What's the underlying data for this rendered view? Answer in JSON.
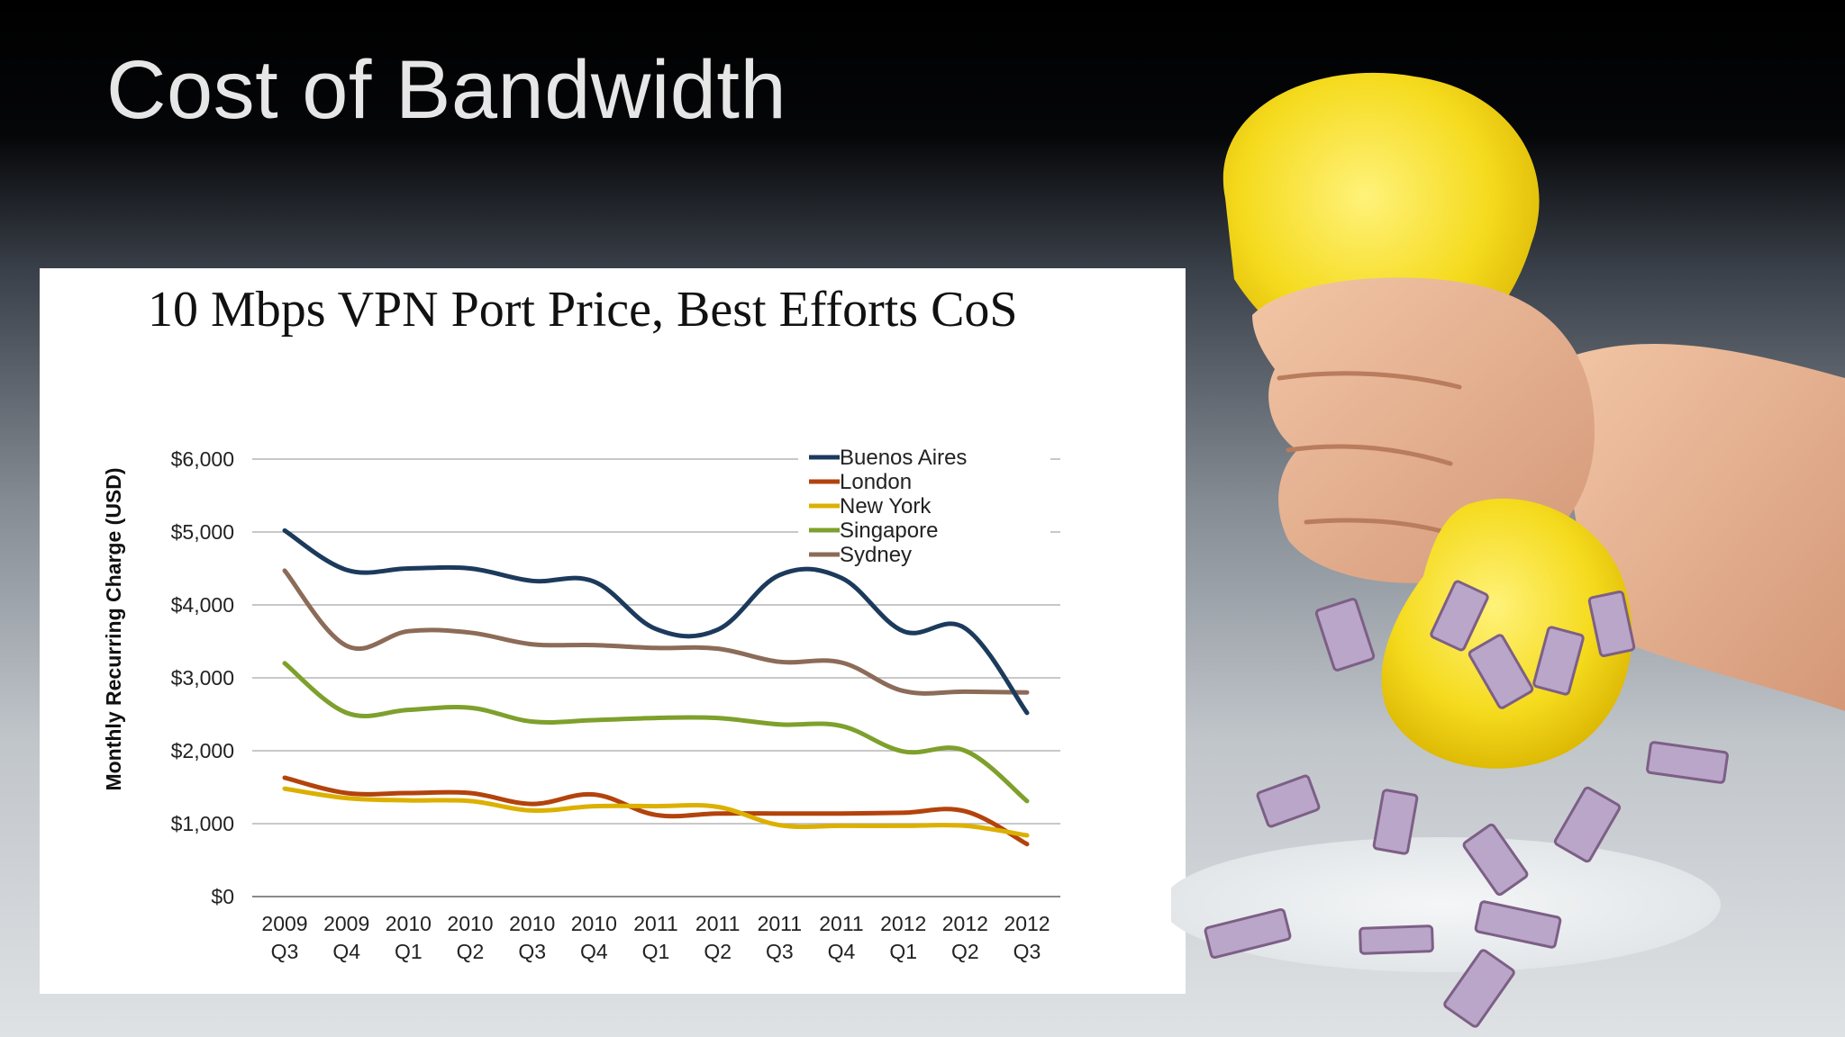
{
  "slide": {
    "title": "Cost of Bandwidth"
  },
  "colors": {
    "buenos_aires": "#1c3a5c",
    "london": "#b3430c",
    "new_york": "#dcb000",
    "singapore": "#7ea02c",
    "sydney": "#8c6b59"
  },
  "illustration": {
    "subject": "hand squeezing yellow sponge with banknotes falling",
    "icon": "hand-sponge-money-icon"
  },
  "chart_data": {
    "type": "line",
    "title": "10 Mbps VPN Port Price, Best Efforts CoS",
    "xlabel": "",
    "ylabel": "Monthly Recurring Charge (USD)",
    "ylim": [
      0,
      6000
    ],
    "yticks": [
      {
        "value": 0,
        "label": "$0"
      },
      {
        "value": 1000,
        "label": "$1,000"
      },
      {
        "value": 2000,
        "label": "$2,000"
      },
      {
        "value": 3000,
        "label": "$3,000"
      },
      {
        "value": 4000,
        "label": "$4,000"
      },
      {
        "value": 5000,
        "label": "$5,000"
      },
      {
        "value": 6000,
        "label": "$6,000"
      }
    ],
    "grid": true,
    "legend": "top-right",
    "categories": [
      {
        "year": "2009",
        "quarter": "Q3"
      },
      {
        "year": "2009",
        "quarter": "Q4"
      },
      {
        "year": "2010",
        "quarter": "Q1"
      },
      {
        "year": "2010",
        "quarter": "Q2"
      },
      {
        "year": "2010",
        "quarter": "Q3"
      },
      {
        "year": "2010",
        "quarter": "Q4"
      },
      {
        "year": "2011",
        "quarter": "Q1"
      },
      {
        "year": "2011",
        "quarter": "Q2"
      },
      {
        "year": "2011",
        "quarter": "Q3"
      },
      {
        "year": "2011",
        "quarter": "Q4"
      },
      {
        "year": "2012",
        "quarter": "Q1"
      },
      {
        "year": "2012",
        "quarter": "Q2"
      },
      {
        "year": "2012",
        "quarter": "Q3"
      }
    ],
    "series": [
      {
        "name": "Buenos Aires",
        "color": "#1c3a5c",
        "values": [
          5020,
          4480,
          4500,
          4500,
          4330,
          4320,
          3670,
          3660,
          4410,
          4370,
          3640,
          3680,
          2520
        ]
      },
      {
        "name": "London",
        "color": "#b3430c",
        "values": [
          1630,
          1420,
          1420,
          1420,
          1270,
          1400,
          1120,
          1140,
          1140,
          1140,
          1150,
          1170,
          720
        ]
      },
      {
        "name": "New York",
        "color": "#dcb000",
        "values": [
          1480,
          1350,
          1320,
          1310,
          1180,
          1240,
          1240,
          1230,
          980,
          970,
          970,
          970,
          840
        ]
      },
      {
        "name": "Singapore",
        "color": "#7ea02c",
        "values": [
          3200,
          2520,
          2560,
          2590,
          2400,
          2420,
          2450,
          2450,
          2360,
          2340,
          1990,
          2000,
          1310
        ]
      },
      {
        "name": "Sydney",
        "color": "#8c6b59",
        "values": [
          4470,
          3440,
          3640,
          3620,
          3460,
          3450,
          3410,
          3400,
          3220,
          3210,
          2820,
          2810,
          2800
        ]
      }
    ]
  }
}
